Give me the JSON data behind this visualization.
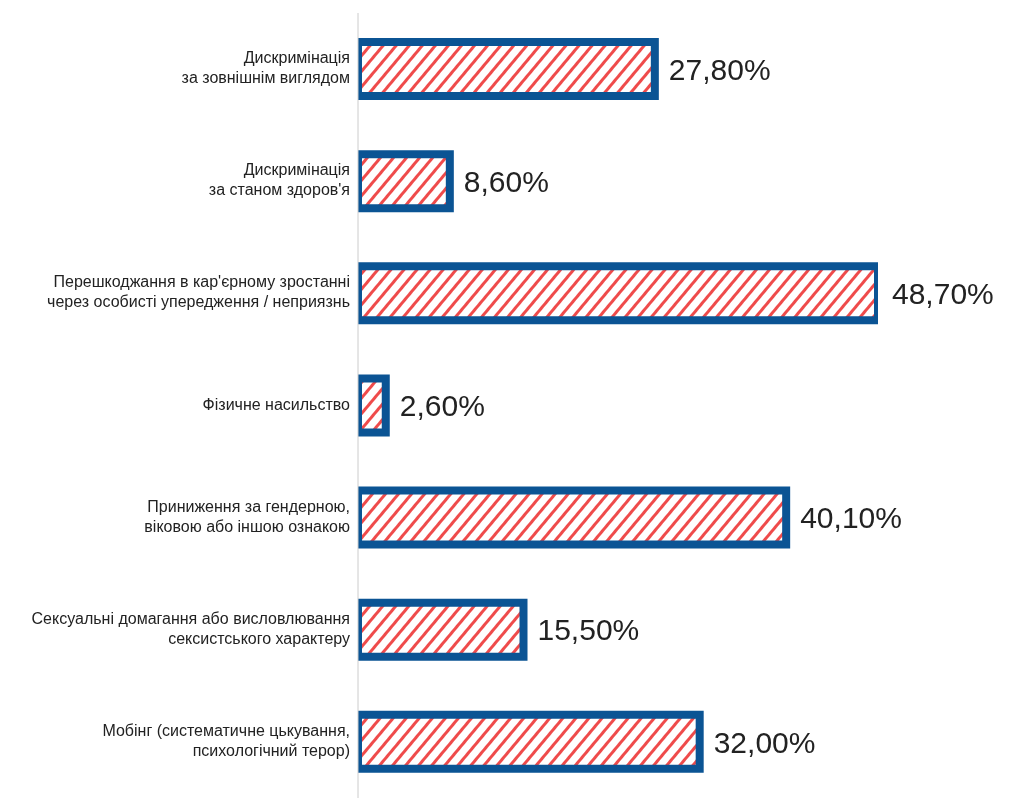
{
  "chart_data": {
    "type": "bar",
    "orientation": "horizontal",
    "categories": [
      "Дискримінація\nза зовнішнім виглядом",
      "Дискримінація\nза станом здоров'я",
      "Перешкоджання в кар'єрному зростанні\nчерез особисті упередження / неприязнь",
      "Фізичне насильство",
      "Приниження за гендерною,\nвіковою або іншою ознакою",
      "Сексуальні домагання або висловлювання\nсексистського характеру",
      "Мобінг (систематичне цькування,\nпсихологічний терор)"
    ],
    "values": [
      27.8,
      8.6,
      48.7,
      2.6,
      40.1,
      15.5,
      32.0
    ],
    "value_labels": [
      "27,80%",
      "8,60%",
      "48,70%",
      "2,60%",
      "40,10%",
      "15,50%",
      "32,00%"
    ],
    "color": "#0b5494",
    "grid": false,
    "legend": false
  }
}
